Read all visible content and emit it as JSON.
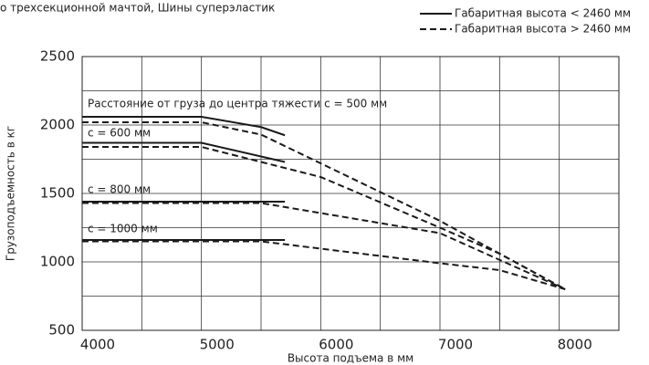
{
  "chart_data": {
    "type": "line",
    "title": "о трехсекционной мачтой, Шины суперэластик",
    "x_label": "Высота подъема в мм",
    "y_label": "Грузоподъемность в кг",
    "xlim": [
      4000,
      8500
    ],
    "ylim": [
      500,
      2500
    ],
    "xticks": [
      4000,
      5000,
      6000,
      7000,
      8000
    ],
    "yticks": [
      500,
      1000,
      1500,
      2000,
      2500
    ],
    "minor_xticks": [
      4500,
      5500,
      6500,
      7500
    ],
    "minor_yticks": [
      750,
      1250,
      1750,
      2250
    ],
    "grid": true,
    "legend": "top-right",
    "annotations": [
      "Расстояние от груза до центра тяжести с = 500 мм",
      "с = 600 мм",
      "с = 800 мм",
      "с = 1000 мм"
    ],
    "series": [
      {
        "name": "Габаритная высота < 2460 мм",
        "color": "#1a1a1a",
        "dash": "solid",
        "lines": [
          {
            "x": [
              4000,
              5000,
              5500,
              5700
            ],
            "values": [
              2060,
              2060,
              1985,
              1925
            ]
          },
          {
            "x": [
              4000,
              5000,
              5700
            ],
            "values": [
              1870,
              1870,
              1730
            ]
          },
          {
            "x": [
              4000,
              5700
            ],
            "values": [
              1440,
              1440
            ]
          },
          {
            "x": [
              4000,
              5700
            ],
            "values": [
              1160,
              1160
            ]
          }
        ]
      },
      {
        "name": "Габаритная высота > 2460 мм",
        "color": "#1a1a1a",
        "dash": "dashed",
        "lines": [
          {
            "x": [
              4000,
              5000,
              5500,
              6000,
              7000,
              7500,
              8050
            ],
            "values": [
              2020,
              2020,
              1930,
              1720,
              1300,
              1060,
              800
            ]
          },
          {
            "x": [
              4000,
              5000,
              5500,
              6000,
              7000,
              7500,
              8050
            ],
            "values": [
              1840,
              1840,
              1730,
              1620,
              1250,
              1060,
              800
            ]
          },
          {
            "x": [
              4000,
              5500,
              7000,
              8050
            ],
            "values": [
              1430,
              1430,
              1210,
              800
            ]
          },
          {
            "x": [
              4000,
              5500,
              7000,
              7500,
              8050
            ],
            "values": [
              1150,
              1150,
              990,
              940,
              800
            ]
          }
        ]
      }
    ]
  }
}
